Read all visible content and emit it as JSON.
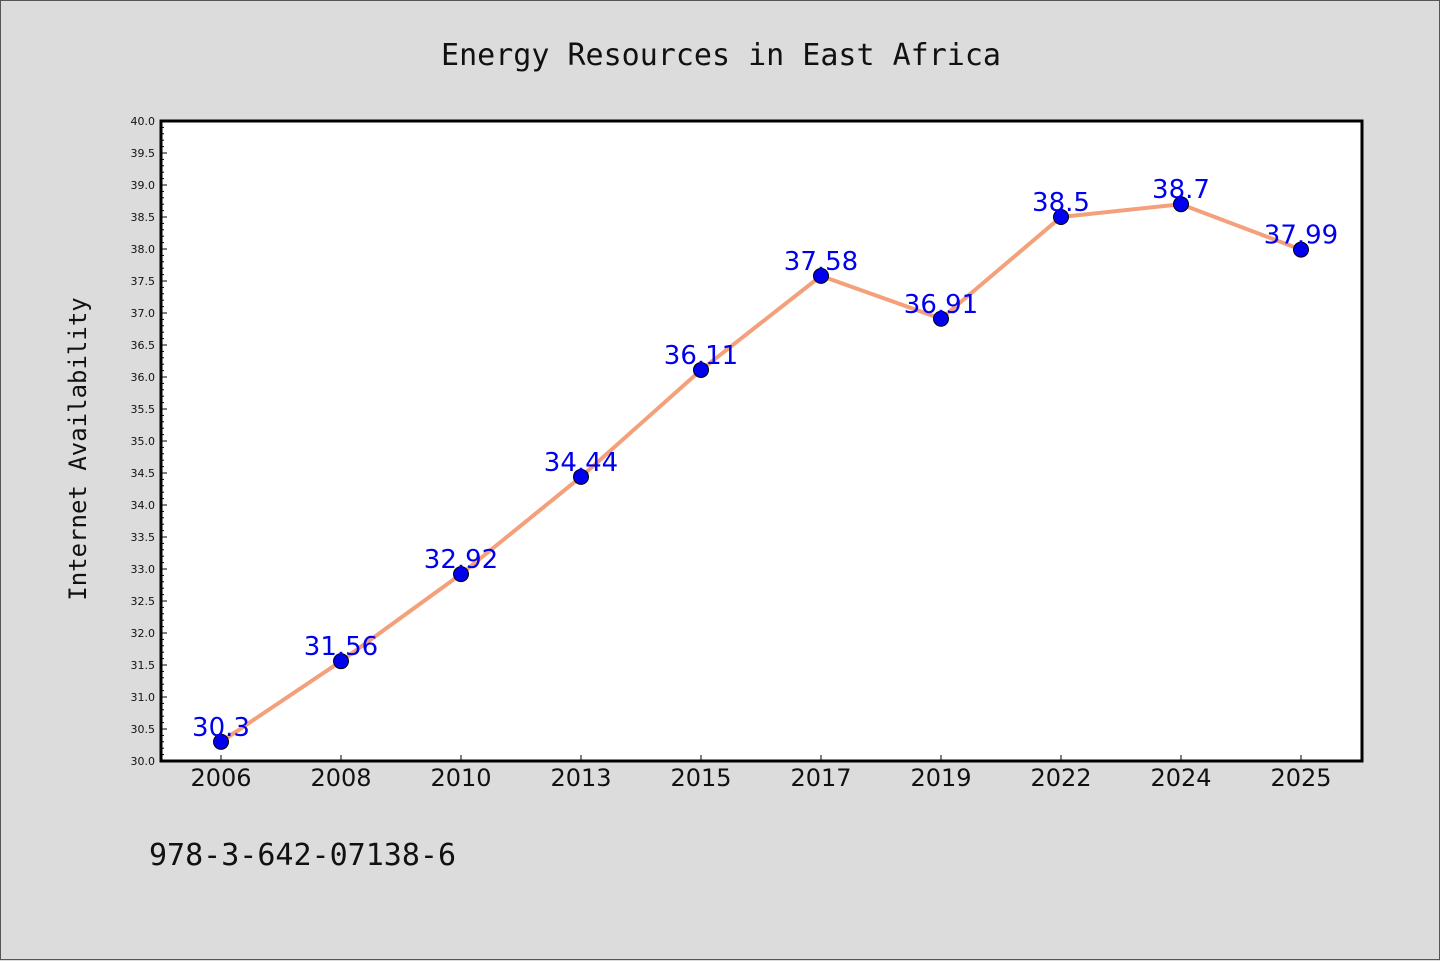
{
  "chart_data": {
    "type": "line",
    "title": "Energy Resources in East Africa",
    "xlabel": "",
    "ylabel": "Internet Availability",
    "categories": [
      "2006",
      "2008",
      "2010",
      "2013",
      "2015",
      "2017",
      "2019",
      "2022",
      "2024",
      "2025"
    ],
    "series": [
      {
        "values": [
          30.3,
          31.56,
          32.92,
          34.44,
          36.11,
          37.58,
          36.91,
          38.5,
          38.7,
          37.99
        ],
        "data_labels": [
          "30.3",
          "31.56",
          "32.92",
          "34.44",
          "36.11",
          "37.58",
          "36.91",
          "38.5",
          "38.7",
          "37.99"
        ],
        "line_color": "#f4a07a",
        "marker_color": "#0000ee"
      }
    ],
    "ylim": [
      30.0,
      40.0
    ],
    "yticks": [
      "30.0",
      "30.5",
      "31.0",
      "31.5",
      "32.0",
      "32.5",
      "33.0",
      "33.5",
      "34.0",
      "34.5",
      "35.0",
      "35.5",
      "36.0",
      "36.5",
      "37.0",
      "37.5",
      "38.0",
      "38.5",
      "39.0",
      "39.5",
      "40.0"
    ],
    "grid": false,
    "legend": "none"
  },
  "footer": {
    "text": "978-3-642-07138-6"
  },
  "colors": {
    "background": "#dcdcdc",
    "plot_background": "#ffffff",
    "label_color": "#0000ee"
  }
}
